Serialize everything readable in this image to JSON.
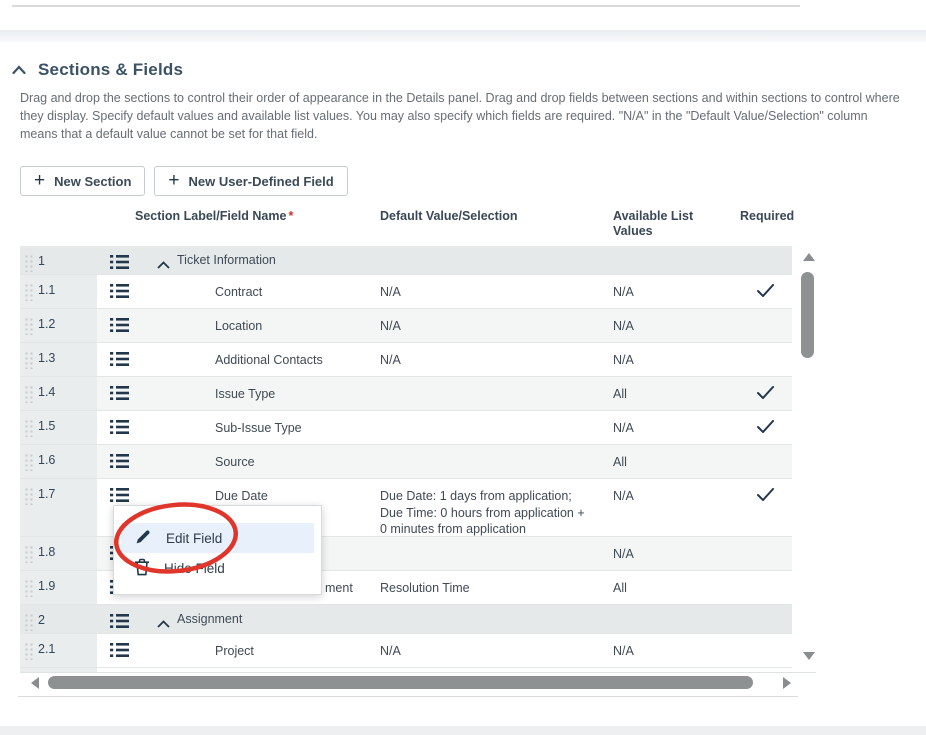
{
  "section": {
    "title": "Sections & Fields",
    "description": "Drag and drop the sections to control their order of appearance in the Details panel. Drag and drop fields between sections and within sections to control where they display. Specify default values and available list values. You may also specify which fields are required. \"N/A\" in the \"Default Value/Selection\" column means that a default value cannot be set for that field."
  },
  "toolbar": {
    "plus_icon": "+",
    "new_section_label": "New Section",
    "new_field_label": "New User-Defined Field"
  },
  "table": {
    "headers": {
      "name": "Section Label/Field Name",
      "name_required_mark": "*",
      "default": "Default Value/Selection",
      "available": "Available List Values",
      "required": "Required"
    },
    "rows": [
      {
        "num": "1",
        "type": "section",
        "label": "Ticket Information"
      },
      {
        "num": "1.1",
        "type": "field",
        "label": "Contract",
        "default": "N/A",
        "available": "N/A",
        "required": true
      },
      {
        "num": "1.2",
        "type": "field",
        "label": "Location",
        "default": "N/A",
        "available": "N/A",
        "required": false
      },
      {
        "num": "1.3",
        "type": "field",
        "label": "Additional Contacts",
        "default": "N/A",
        "available": "N/A",
        "required": false
      },
      {
        "num": "1.4",
        "type": "field",
        "label": "Issue Type",
        "default": "",
        "available": "All",
        "required": true
      },
      {
        "num": "1.5",
        "type": "field",
        "label": "Sub-Issue Type",
        "default": "",
        "available": "N/A",
        "required": true
      },
      {
        "num": "1.6",
        "type": "field",
        "label": "Source",
        "default": "",
        "available": "All",
        "required": false
      },
      {
        "num": "1.7",
        "type": "field",
        "label": "Due Date",
        "default": "Due Date: 1 days from application; Due Time: 0 hours from application + 0 minutes from application",
        "available": "N/A",
        "required": true
      },
      {
        "num": "1.8",
        "type": "field",
        "label": "",
        "default": "",
        "available": "N/A",
        "required": false
      },
      {
        "num": "1.9",
        "type": "field",
        "label": "ment",
        "default": "Resolution Time",
        "available": "All",
        "required": false,
        "label_occluded": true
      },
      {
        "num": "2",
        "type": "section",
        "label": "Assignment"
      },
      {
        "num": "2.1",
        "type": "field",
        "label": "Project",
        "default": "N/A",
        "available": "N/A",
        "required": false
      }
    ]
  },
  "context_menu": {
    "items": [
      {
        "label": "Edit Field",
        "icon": "pencil-icon",
        "highlighted": true
      },
      {
        "label": "Hide Field",
        "icon": "trash-icon",
        "highlighted": false
      }
    ]
  },
  "colors": {
    "ink_navy": "#22374b",
    "heading": "#3b5266",
    "body_text": "#666d74",
    "annotation_red": "#e0352b",
    "asterisk_red": "#d32f2f",
    "menu_highlight": "#e8f1fb",
    "section_row_bg": "#e6e9e9",
    "alt_row_bg": "#f4f6f6",
    "gutter_bg": "#eaeded",
    "scrollbar_thumb": "#8e9192"
  }
}
